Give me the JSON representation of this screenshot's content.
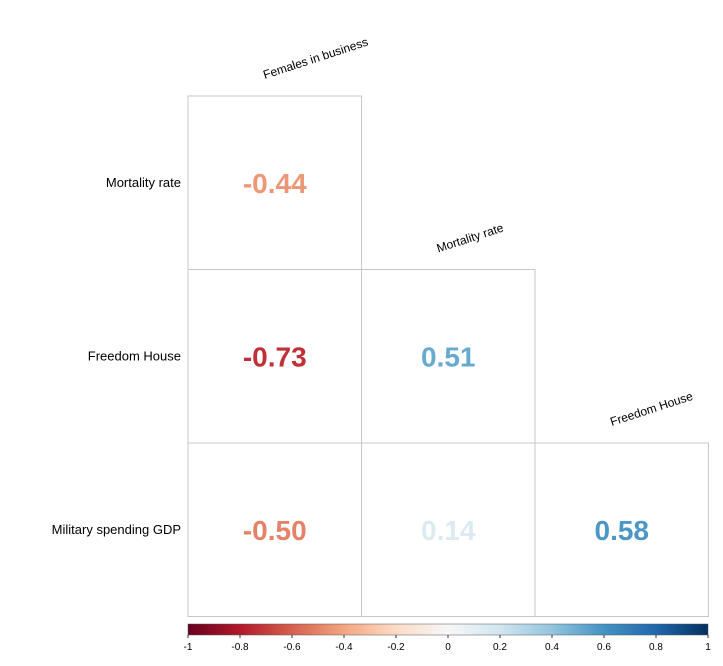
{
  "chart_data": {
    "type": "heatmap",
    "title": "",
    "columns": [
      "Females in business",
      "Mortality rate",
      "Freedom House"
    ],
    "rows": [
      "Mortality rate",
      "Freedom House",
      "Military spending GDP"
    ],
    "cells": [
      {
        "row": 0,
        "col": 0,
        "value": -0.44,
        "label": "-0.44"
      },
      {
        "row": 1,
        "col": 0,
        "value": -0.73,
        "label": "-0.73"
      },
      {
        "row": 1,
        "col": 1,
        "value": 0.51,
        "label": "0.51"
      },
      {
        "row": 2,
        "col": 0,
        "value": -0.5,
        "label": "-0.50"
      },
      {
        "row": 2,
        "col": 1,
        "value": 0.14,
        "label": "0.14"
      },
      {
        "row": 2,
        "col": 2,
        "value": 0.58,
        "label": "0.58"
      }
    ],
    "colorbar": {
      "range": [
        -1,
        1
      ],
      "ticks": [
        -1,
        -0.8,
        -0.6,
        -0.4,
        -0.2,
        0,
        0.2,
        0.4,
        0.6,
        0.8,
        1
      ],
      "tick_labels": [
        "-1",
        "-0.8",
        "-0.6",
        "-0.4",
        "-0.2",
        "0",
        "0.2",
        "0.4",
        "0.6",
        "0.8",
        "1"
      ],
      "placement": "bottom",
      "colors": [
        "#67001f",
        "#b2182b",
        "#d6604d",
        "#f4a582",
        "#fddbc7",
        "#f7f7f7",
        "#d1e5f0",
        "#92c5de",
        "#4393c3",
        "#2166ac",
        "#053061"
      ]
    }
  }
}
